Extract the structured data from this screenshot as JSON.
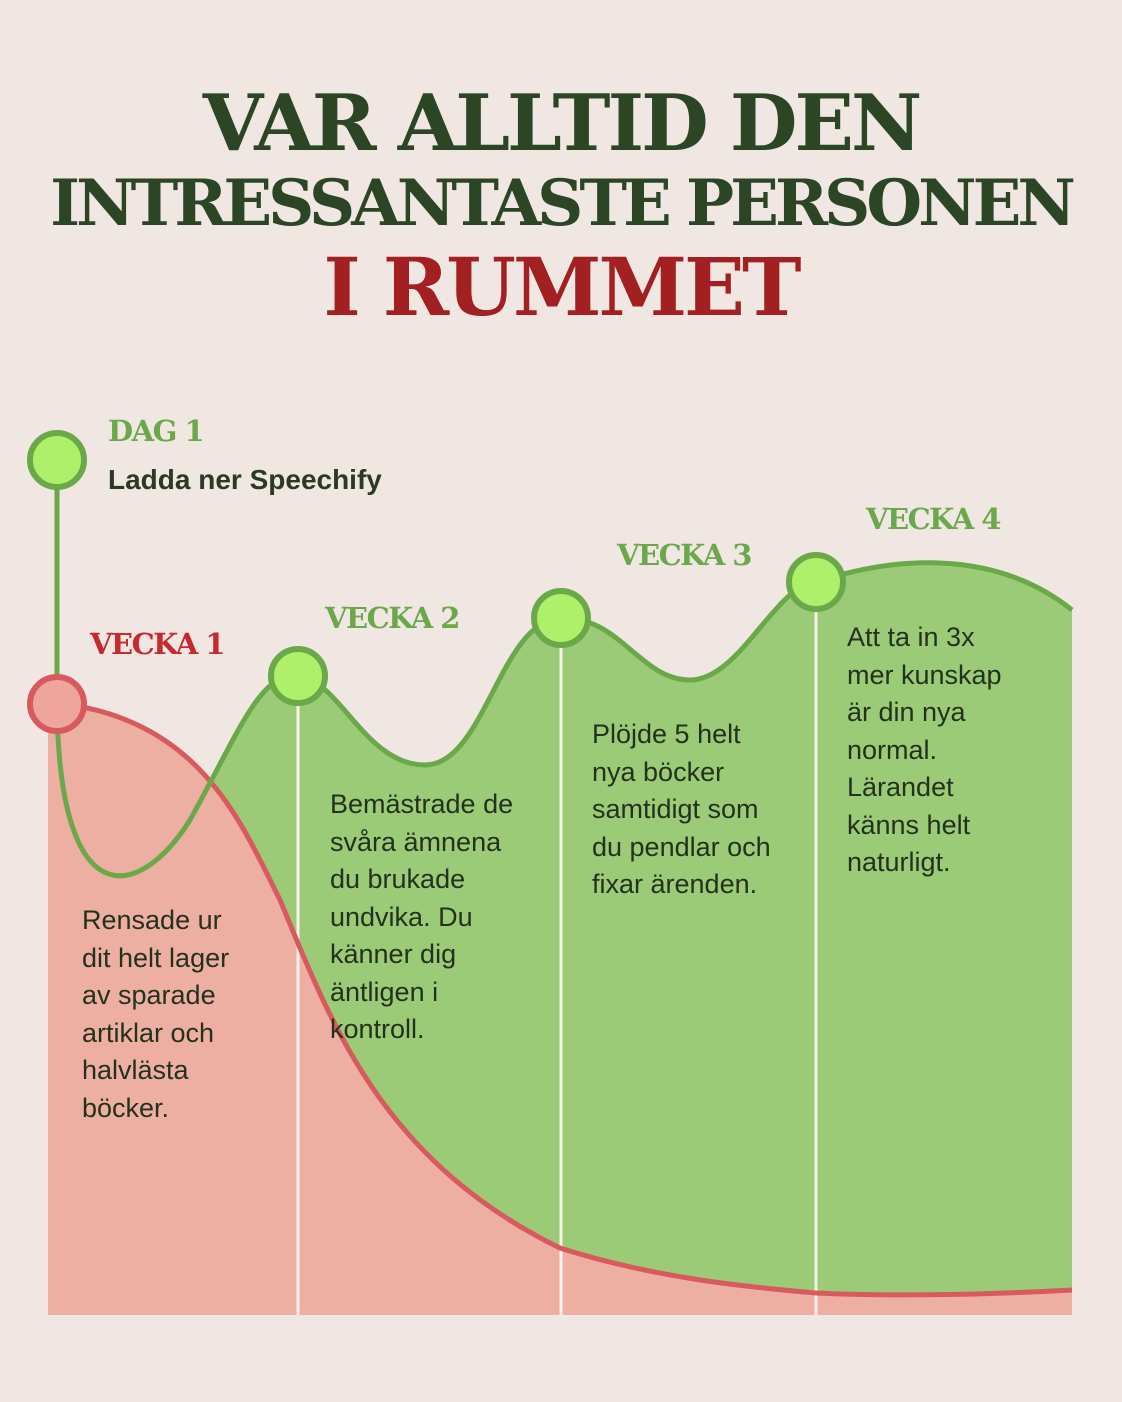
{
  "header": {
    "line1": "VAR ALLTID DEN",
    "line2": "INTRESSANTASTE PERSONEN",
    "line3": "I RUMMET"
  },
  "colors": {
    "background": "#f0e7e3",
    "dark_green": "#2c4524",
    "accent_red": "#a21f22",
    "green_area": "#9ccb78",
    "green_line": "#6aa84a",
    "green_dot": "#aef06a",
    "red_area": "#eeafa3",
    "red_line": "#d85a5e"
  },
  "milestones": {
    "day1": {
      "label": "DAG 1",
      "text": "Ladda ner Speechify"
    },
    "week1": {
      "label": "VECKA 1",
      "text": "Rensade ur\ndit helt lager\nav sparade\nartiklar och\nhalvlästa\nböcker."
    },
    "week2": {
      "label": "VECKA 2",
      "text": "Bemästrade de\nsvåra ämnena\ndu brukade\nundvika. Du\nkänner dig\näntligen i\nkontroll."
    },
    "week3": {
      "label": "VECKA 3",
      "text": "Plöjde 5 helt\nnya böcker\nsamtidigt som\ndu pendlar och\nfixar ärenden."
    },
    "week4": {
      "label": "VECKA 4",
      "text": "Att ta in 3x\nmer kunskap\när din nya\nnormal.\nLärandet\nkänns helt\nnaturligt."
    }
  }
}
